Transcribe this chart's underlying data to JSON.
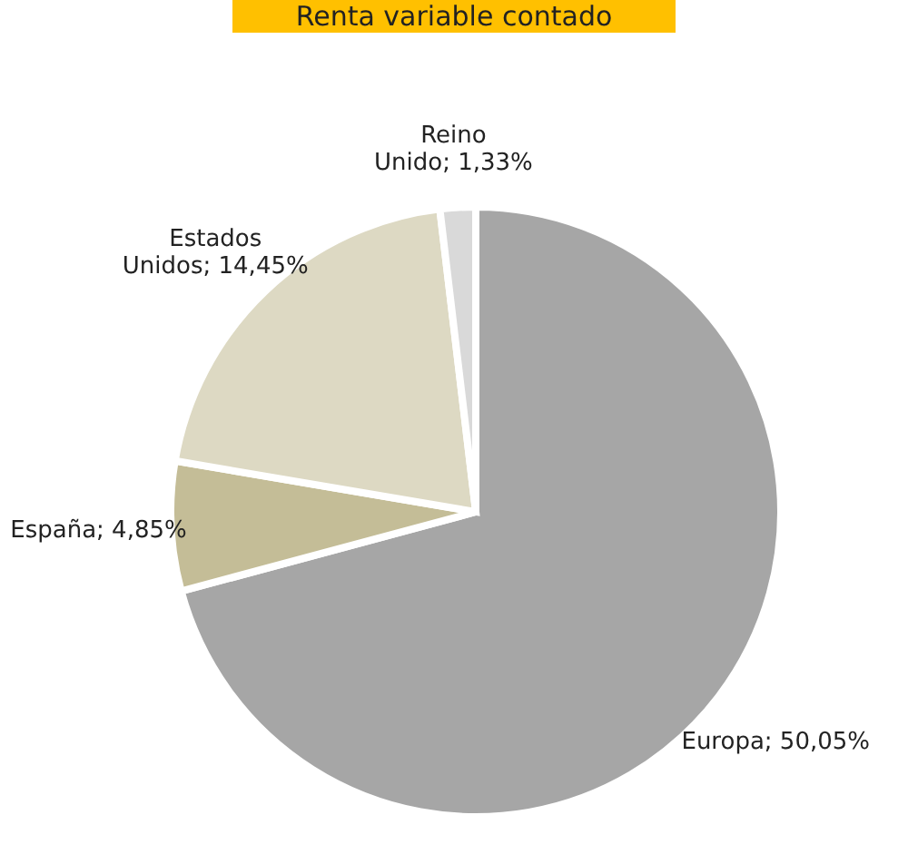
{
  "chart_data": {
    "type": "pie",
    "title": "Renta variable contado",
    "categories": [
      "Europa",
      "España",
      "Estados Unidos",
      "Reino Unido"
    ],
    "values": [
      50.05,
      4.85,
      14.45,
      1.33
    ],
    "value_labels": [
      "50,05%",
      "4,85%",
      "14,45%",
      "1,33%"
    ],
    "colors": [
      "#a6a6a6",
      "#c4bd97",
      "#ddd9c3",
      "#d9d9d9"
    ],
    "legend": false
  }
}
